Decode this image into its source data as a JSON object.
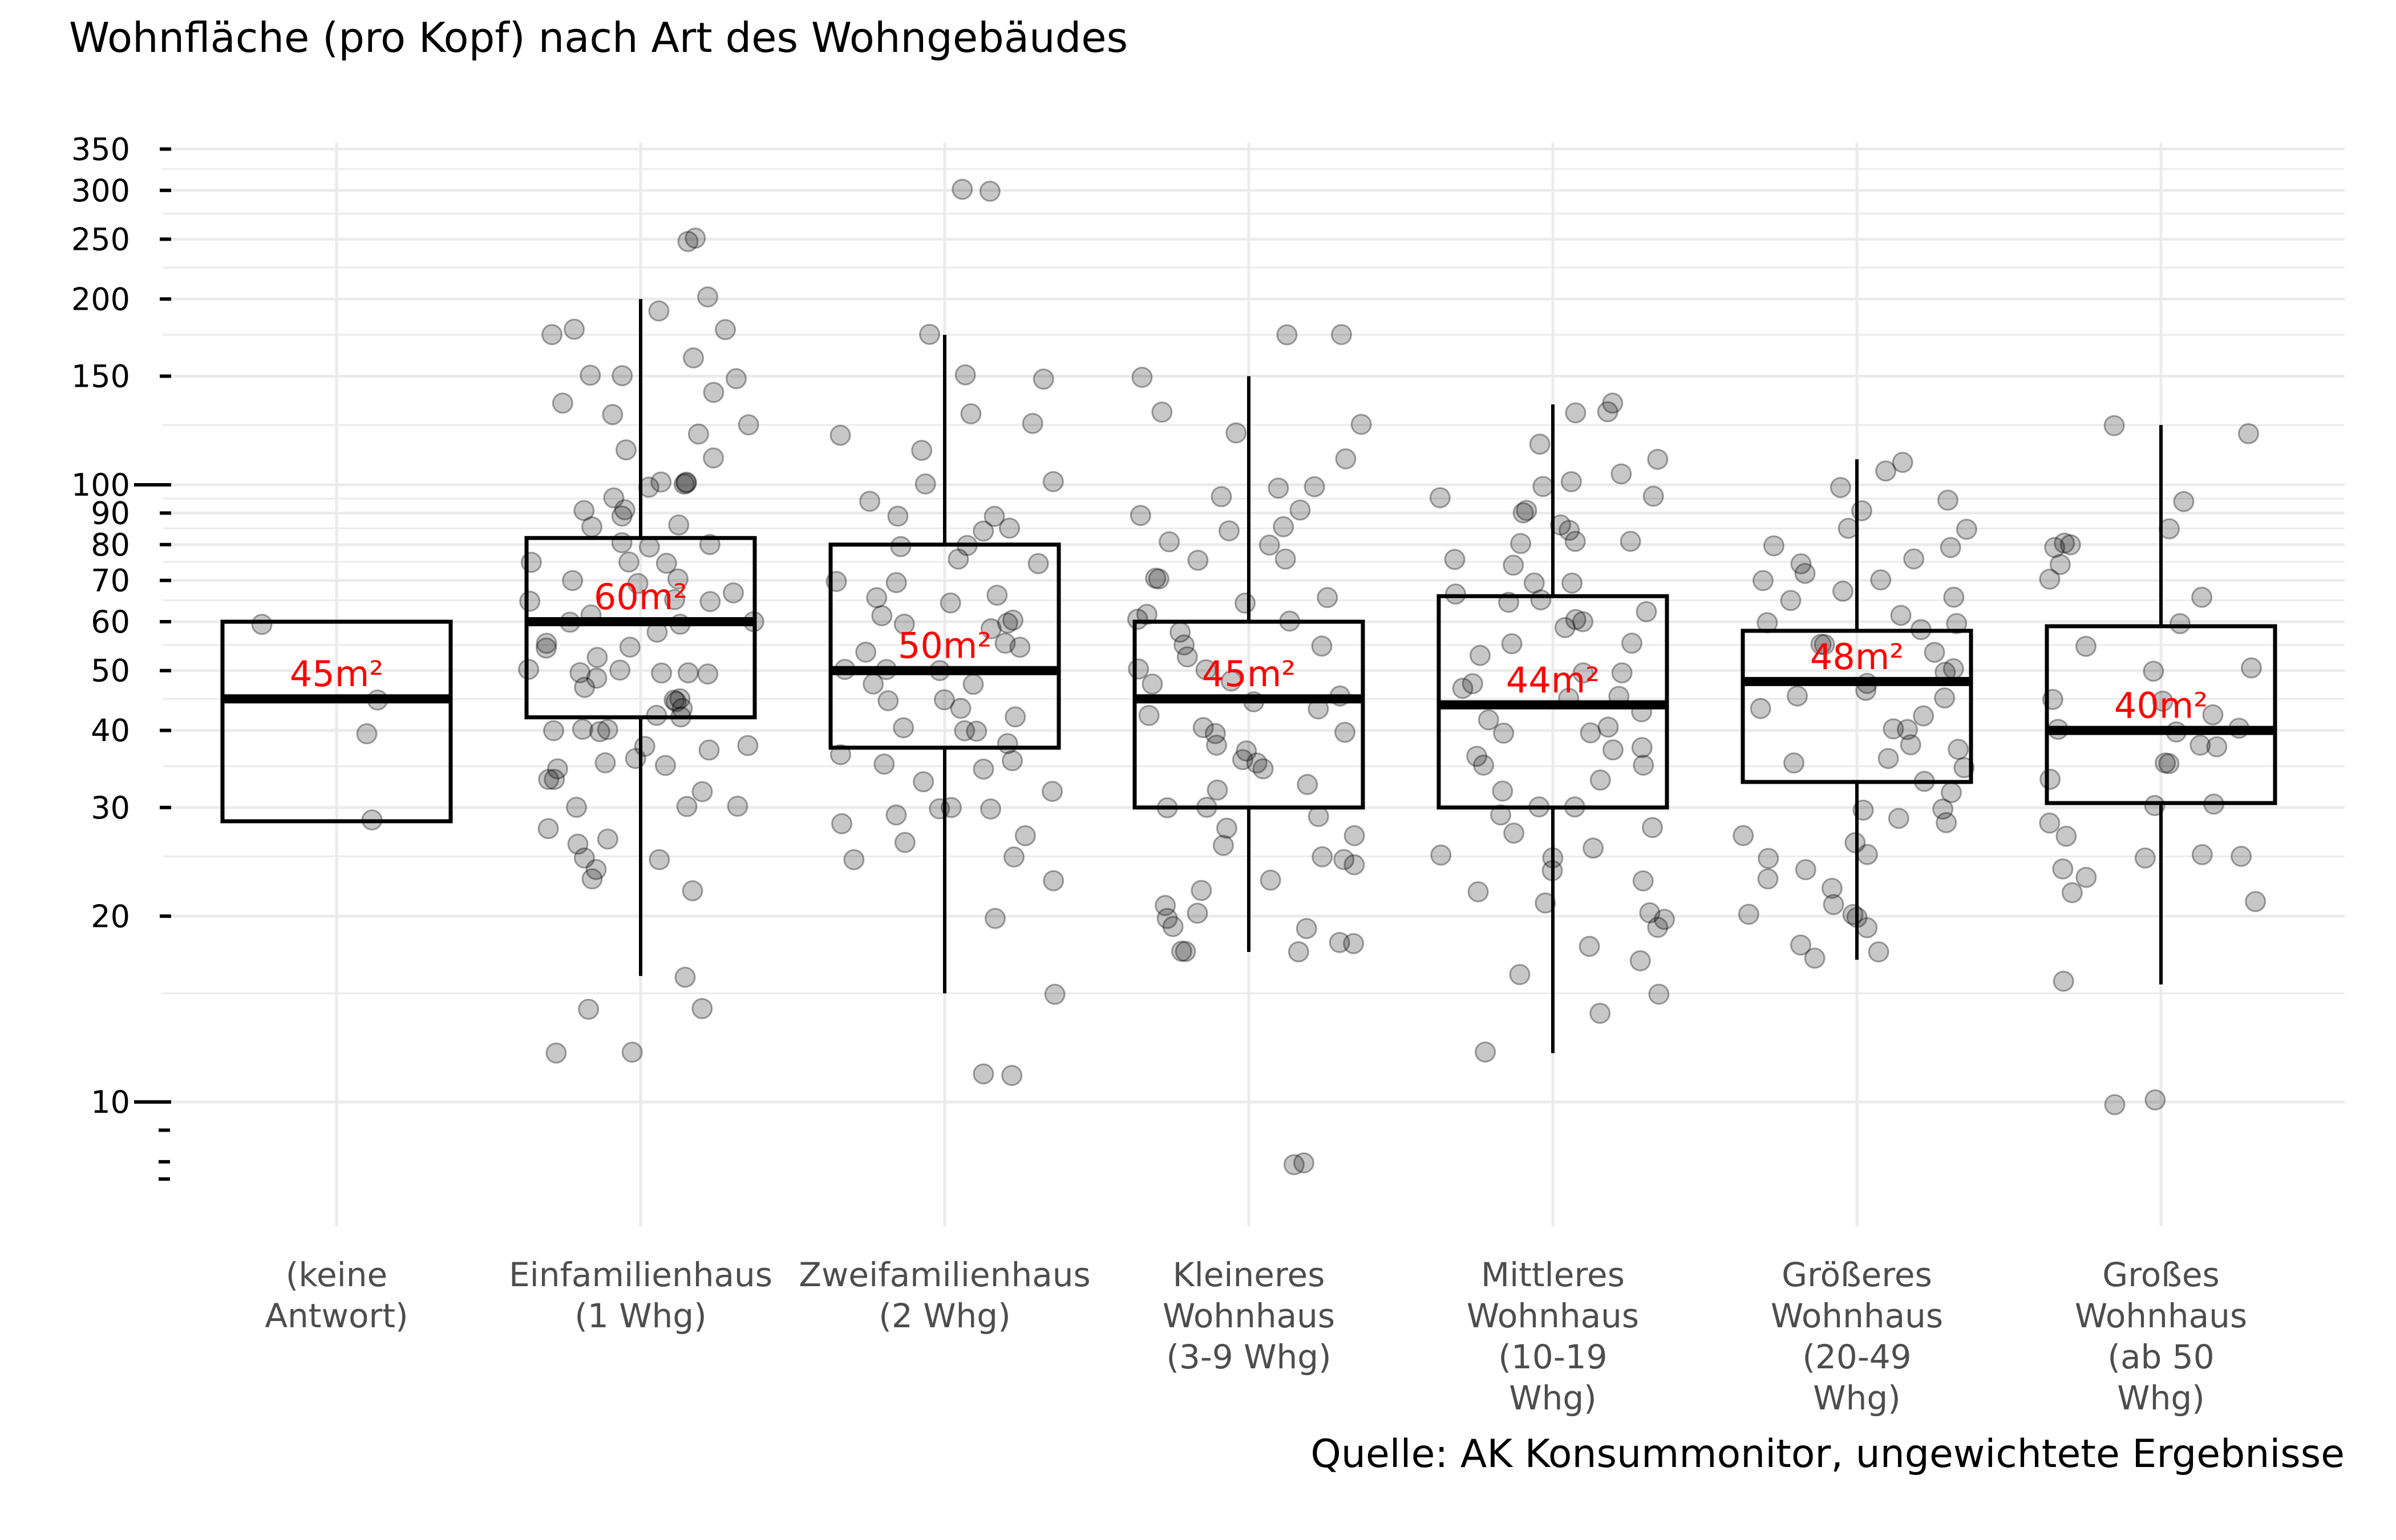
{
  "chart_data": {
    "type": "boxplot",
    "title": "Wohnfläche (pro Kopf) nach Art des Wohngebäudes",
    "caption": "Quelle: AK Konsummonitor, ungewichtete Ergebnisse",
    "xlabel": "",
    "ylabel": "",
    "y_scale": "log",
    "ylim": [
      7.5,
      370
    ],
    "y_ticks": [
      10,
      20,
      30,
      40,
      50,
      60,
      70,
      80,
      90,
      100,
      150,
      200,
      250,
      300,
      350
    ],
    "grid": true,
    "categories": [
      {
        "label": [
          "(keine",
          "Antwort)"
        ],
        "q1": 28.5,
        "median": 45,
        "q3": 60,
        "whisker_low": 28.5,
        "whisker_high": 60,
        "median_label": "45m²",
        "points": [
          28.5,
          40,
          45,
          60
        ]
      },
      {
        "label": [
          "Einfamilienhaus",
          "(1 Whg)"
        ],
        "q1": 42,
        "median": 60,
        "q3": 82,
        "whisker_low": 16,
        "whisker_high": 200,
        "median_label": "60m²",
        "points": [
          250,
          250,
          200,
          190,
          180,
          180,
          175,
          160,
          150,
          150,
          150,
          140,
          135,
          130,
          125,
          120,
          115,
          110,
          100,
          100,
          100,
          100,
          100,
          95,
          90,
          90,
          90,
          85,
          85,
          80,
          80,
          80,
          75,
          75,
          75,
          70,
          70,
          70,
          67,
          65,
          65,
          65,
          62,
          60,
          60,
          60,
          58,
          55,
          55,
          55,
          53,
          50,
          50,
          50,
          50,
          50,
          50,
          48,
          47,
          45,
          45,
          45,
          43,
          42,
          42,
          40,
          40,
          40,
          40,
          38,
          38,
          37,
          36,
          35,
          35,
          35,
          33,
          33,
          32,
          30,
          30,
          30,
          28,
          27,
          26,
          25,
          25,
          24,
          23,
          22,
          16,
          14,
          14,
          12,
          12
        ]
      },
      {
        "label": [
          "Zweifamilienhaus",
          "(2 Whg)"
        ],
        "q1": 37.5,
        "median": 50,
        "q3": 80,
        "whisker_low": 15,
        "whisker_high": 175,
        "median_label": "50m²",
        "points": [
          300,
          300,
          175,
          150,
          150,
          130,
          125,
          120,
          115,
          100,
          100,
          95,
          90,
          90,
          85,
          85,
          80,
          80,
          75,
          75,
          70,
          70,
          67,
          65,
          65,
          62,
          60,
          60,
          60,
          58,
          55,
          55,
          53,
          50,
          50,
          50,
          48,
          47,
          45,
          45,
          43,
          42,
          40,
          40,
          40,
          38,
          37,
          36,
          35,
          35,
          33,
          32,
          30,
          30,
          30,
          29,
          28,
          27,
          26,
          25,
          25,
          23,
          20,
          15,
          11,
          11
        ]
      },
      {
        "label": [
          "Kleineres",
          "Wohnhaus",
          "(3-9 Whg)"
        ],
        "q1": 30,
        "median": 45,
        "q3": 60,
        "whisker_low": 17.5,
        "whisker_high": 150,
        "median_label": "45m²",
        "points": [
          175,
          175,
          150,
          130,
          125,
          120,
          110,
          100,
          100,
          95,
          90,
          90,
          85,
          85,
          80,
          80,
          75,
          75,
          70,
          70,
          65,
          65,
          62,
          60,
          60,
          58,
          55,
          55,
          53,
          50,
          50,
          48,
          47,
          45,
          45,
          43,
          42,
          40,
          40,
          40,
          38,
          37,
          36,
          35,
          35,
          33,
          32,
          30,
          30,
          29,
          28,
          27,
          26,
          25,
          25,
          24,
          23,
          22,
          21,
          20,
          20,
          19,
          19,
          18,
          18,
          17.5,
          17.5,
          17.5,
          8,
          8
        ]
      },
      {
        "label": [
          "Mittleres",
          "Wohnhaus",
          "(10-19",
          "Whg)"
        ],
        "q1": 30,
        "median": 44,
        "q3": 66,
        "whisker_low": 12,
        "whisker_high": 135,
        "median_label": "44m²",
        "points": [
          135,
          130,
          130,
          115,
          110,
          105,
          100,
          100,
          95,
          95,
          90,
          90,
          85,
          85,
          80,
          80,
          80,
          75,
          75,
          70,
          70,
          67,
          65,
          65,
          62,
          60,
          60,
          58,
          55,
          55,
          53,
          50,
          50,
          48,
          47,
          45,
          45,
          43,
          42,
          40,
          40,
          40,
          38,
          37,
          36,
          35,
          35,
          33,
          32,
          30,
          30,
          29,
          28,
          27,
          26,
          25,
          25,
          24,
          23,
          22,
          21,
          20,
          20,
          19,
          18,
          17,
          16,
          15,
          14,
          12
        ]
      },
      {
        "label": [
          "Größeres",
          "Wohnhaus",
          "(20-49",
          "Whg)"
        ],
        "q1": 33,
        "median": 48,
        "q3": 58,
        "whisker_low": 17,
        "whisker_high": 110,
        "median_label": "48m²",
        "points": [
          110,
          105,
          100,
          95,
          90,
          85,
          85,
          80,
          80,
          75,
          75,
          72,
          70,
          70,
          67,
          65,
          65,
          62,
          60,
          60,
          58,
          55,
          55,
          53,
          50,
          50,
          48,
          47,
          45,
          45,
          43,
          42,
          40,
          40,
          38,
          37,
          36,
          35,
          35,
          33,
          32,
          30,
          30,
          29,
          28,
          27,
          26,
          25,
          25,
          24,
          23,
          22,
          21,
          20,
          20,
          20,
          19,
          18,
          17.5,
          17
        ]
      },
      {
        "label": [
          "Großes",
          "Wohnhaus",
          "(ab 50",
          "Whg)"
        ],
        "q1": 30.5,
        "median": 40,
        "q3": 59,
        "whisker_low": 15.5,
        "whisker_high": 125,
        "median_label": "40m²",
        "points": [
          125,
          120,
          95,
          85,
          80,
          80,
          80,
          75,
          70,
          65,
          60,
          55,
          50,
          50,
          45,
          45,
          42,
          40,
          40,
          40,
          38,
          38,
          35,
          35,
          33,
          30,
          30,
          28,
          27,
          25,
          25,
          25,
          24,
          23,
          22,
          21,
          15.5,
          10,
          10
        ]
      }
    ]
  },
  "colors": {
    "points": "#000000",
    "median_text": "#ff0000",
    "grid": "#ebebeb",
    "box": "#000000"
  }
}
